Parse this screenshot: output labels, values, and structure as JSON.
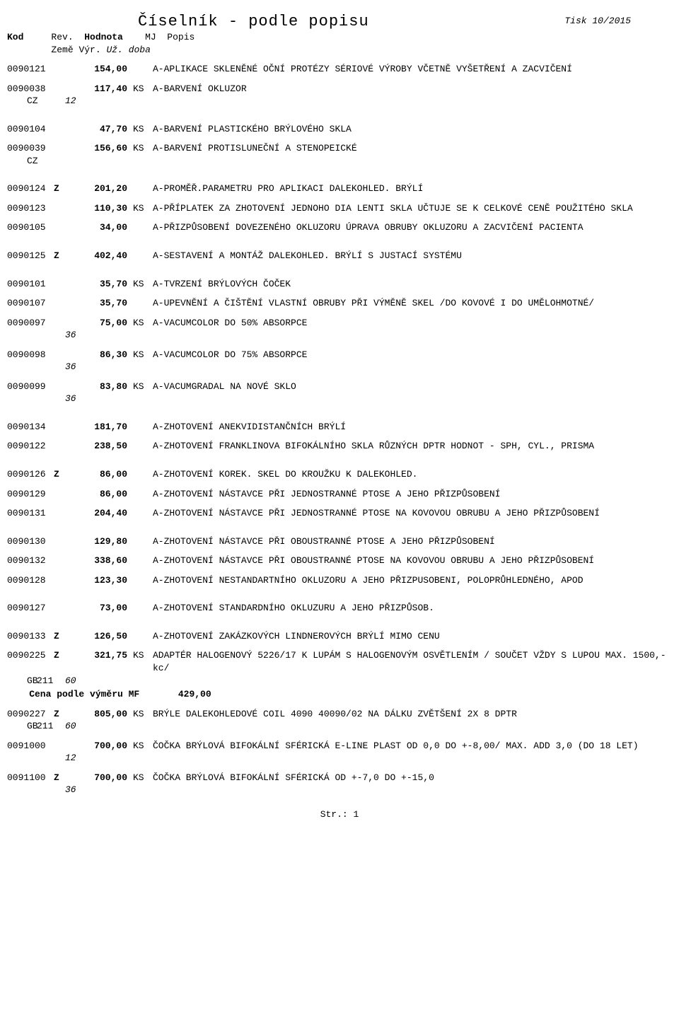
{
  "header": {
    "title": "Číselník - podle popisu",
    "print": "Tisk 10/2015",
    "cols": {
      "kod": "Kod",
      "rev": "Rev.",
      "hodnota": "Hodnota",
      "mj": "MJ",
      "popis": "Popis"
    },
    "subcols": {
      "zeme": "Země",
      "vyr": "Výr.",
      "uz": "Už. doba"
    }
  },
  "rows": [
    {
      "kod": "0090121",
      "rev": "",
      "hodnota": "154,00",
      "mj": "",
      "popis": "A-APLIKACE SKLENĚNÉ OČNÍ PROTÉZY SÉRIOVÉ VÝROBY VČETNĚ VYŠETŘENÍ A ZACVIČENÍ",
      "sub": null
    },
    {
      "kod": "0090038",
      "rev": "",
      "hodnota": "117,40",
      "mj": "KS",
      "popis": "A-BARVENÍ OKLUZOR",
      "sub": {
        "zeme": "CZ",
        "vyr": "",
        "uz": "12"
      }
    },
    {
      "kod": "0090104",
      "rev": "",
      "hodnota": "47,70",
      "mj": "KS",
      "popis": "A-BARVENÍ PLASTICKÉHO BRÝLOVÉHO SKLA",
      "sub": null,
      "gap": true
    },
    {
      "kod": "0090039",
      "rev": "",
      "hodnota": "156,60",
      "mj": "KS",
      "popis": "A-BARVENÍ PROTISLUNEČNÍ A STENOPEICKÉ",
      "sub": {
        "zeme": "CZ",
        "vyr": "",
        "uz": ""
      }
    },
    {
      "kod": "0090124",
      "rev": "Z",
      "hodnota": "201,20",
      "mj": "",
      "popis": "A-PROMĚŘ.PARAMETRU PRO APLIKACI DALEKOHLED. BRÝLÍ",
      "sub": null,
      "gap": true
    },
    {
      "kod": "0090123",
      "rev": "",
      "hodnota": "110,30",
      "mj": "KS",
      "popis": "A-PŘÍPLATEK ZA ZHOTOVENÍ JEDNOHO DIA LENTI SKLA UČTUJE SE K CELKOVÉ CENĚ POUŽITÉHO SKLA",
      "sub": null
    },
    {
      "kod": "0090105",
      "rev": "",
      "hodnota": "34,00",
      "mj": "",
      "popis": "A-PŘIZPŮSOBENÍ DOVEZENÉHO OKLUZORU ÚPRAVA OBRUBY OKLUZORU A ZACVIČENÍ PACIENTA",
      "sub": null
    },
    {
      "kod": "0090125",
      "rev": "Z",
      "hodnota": "402,40",
      "mj": "",
      "popis": "A-SESTAVENÍ A MONTÁŽ DALEKOHLED. BRÝLÍ S JUSTACÍ SYSTÉMU",
      "sub": null,
      "gap": true
    },
    {
      "kod": "0090101",
      "rev": "",
      "hodnota": "35,70",
      "mj": "KS",
      "popis": "A-TVRZENÍ BRÝLOVÝCH ČOČEK",
      "sub": null,
      "gap": true
    },
    {
      "kod": "0090107",
      "rev": "",
      "hodnota": "35,70",
      "mj": "",
      "popis": "A-UPEVNĚNÍ A ČIŠTĚNÍ VLASTNÍ OBRUBY PŘI VÝMĚNĚ SKEL /DO KOVOVÉ I DO UMĚLOHMOTNÉ/",
      "sub": null
    },
    {
      "kod": "0090097",
      "rev": "",
      "hodnota": "75,00",
      "mj": "KS",
      "popis": "A-VACUMCOLOR DO 50% ABSORPCE",
      "sub": {
        "zeme": "",
        "vyr": "",
        "uz": "36"
      }
    },
    {
      "kod": "0090098",
      "rev": "",
      "hodnota": "86,30",
      "mj": "KS",
      "popis": "A-VACUMCOLOR DO 75% ABSORPCE",
      "sub": {
        "zeme": "",
        "vyr": "",
        "uz": "36"
      }
    },
    {
      "kod": "0090099",
      "rev": "",
      "hodnota": "83,80",
      "mj": "KS",
      "popis": "A-VACUMGRADAL NA NOVÉ SKLO",
      "sub": {
        "zeme": "",
        "vyr": "",
        "uz": "36"
      }
    },
    {
      "kod": "0090134",
      "rev": "",
      "hodnota": "181,70",
      "mj": "",
      "popis": "A-ZHOTOVENÍ ANEKVIDISTANČNÍCH BRÝLÍ",
      "sub": null,
      "gap": true
    },
    {
      "kod": "0090122",
      "rev": "",
      "hodnota": "238,50",
      "mj": "",
      "popis": "A-ZHOTOVENÍ FRANKLINOVA BIFOKÁLNÍHO SKLA RŮZNÝCH DPTR HODNOT - SPH, CYL., PRISMA",
      "sub": null
    },
    {
      "kod": "0090126",
      "rev": "Z",
      "hodnota": "86,00",
      "mj": "",
      "popis": "A-ZHOTOVENÍ KOREK. SKEL DO KROUŽKU K DALEKOHLED.",
      "sub": null,
      "gap": true
    },
    {
      "kod": "0090129",
      "rev": "",
      "hodnota": "86,00",
      "mj": "",
      "popis": "A-ZHOTOVENÍ NÁSTAVCE PŘI JEDNOSTRANNÉ PTOSE A JEHO PŘIZPŮSOBENÍ",
      "sub": null
    },
    {
      "kod": "0090131",
      "rev": "",
      "hodnota": "204,40",
      "mj": "",
      "popis": "A-ZHOTOVENÍ NÁSTAVCE PŘI JEDNOSTRANNÉ PTOSE NA KOVOVOU OBRUBU A JEHO PŘIZPŮSOBENÍ",
      "sub": null
    },
    {
      "kod": "0090130",
      "rev": "",
      "hodnota": "129,80",
      "mj": "",
      "popis": "A-ZHOTOVENÍ NÁSTAVCE PŘI OBOUSTRANNÉ PTOSE A JEHO PŘIZPŮSOBENÍ",
      "sub": null,
      "gap": true
    },
    {
      "kod": "0090132",
      "rev": "",
      "hodnota": "338,60",
      "mj": "",
      "popis": "A-ZHOTOVENÍ NÁSTAVCE PŘI OBOUSTRANNÉ PTOSE NA KOVOVOU OBRUBU A JEHO PŘIZPŮSOBENÍ",
      "sub": null
    },
    {
      "kod": "0090128",
      "rev": "",
      "hodnota": "123,30",
      "mj": "",
      "popis": "A-ZHOTOVENÍ NESTANDARTNÍHO OKLUZORU A JEHO PŘIZPUSOBENI, POLOPRŮHLEDNÉHO, APOD",
      "sub": null
    },
    {
      "kod": "0090127",
      "rev": "",
      "hodnota": "73,00",
      "mj": "",
      "popis": "A-ZHOTOVENÍ STANDARDNÍHO OKLUZURU A JEHO PŘIZPŮSOB.",
      "sub": null,
      "gap": true
    },
    {
      "kod": "0090133",
      "rev": "Z",
      "hodnota": "126,50",
      "mj": "",
      "popis": "A-ZHOTOVENÍ ZAKÁZKOVÝCH LINDNEROVÝCH BRÝLÍ MIMO CENU",
      "sub": null,
      "gap": true
    },
    {
      "kod": "0090225",
      "rev": "Z",
      "hodnota": "321,75",
      "mj": "KS",
      "popis": "ADAPTÉR  HALOGENOVÝ  5226/17 K LUPÁM S HALOGENOVÝM OSVĚTLENÍM / SOUČET VŽDY S LUPOU MAX. 1500,-kc/",
      "sub": {
        "zeme": "GB",
        "vyr": "211",
        "uz": "60"
      },
      "cena": "429,00"
    },
    {
      "kod": "0090227",
      "rev": "Z",
      "hodnota": "805,00",
      "mj": "KS",
      "popis": "BRÝLE DALEKOHLEDOVÉ COIL 4090  40090/02 NA DÁLKU ZVĚTŠENÍ 2X 8 DPTR",
      "sub": {
        "zeme": "GB",
        "vyr": "211",
        "uz": "60"
      }
    },
    {
      "kod": "0091000",
      "rev": "",
      "hodnota": "700,00",
      "mj": "KS",
      "popis": "ČOČKA BRÝLOVÁ BIFOKÁLNÍ SFÉRICKÁ E-LINE   PLAST OD 0,0 DO +-8,00/  MAX. ADD 3,0 (DO 18 LET)",
      "sub": {
        "zeme": "",
        "vyr": "",
        "uz": "12"
      }
    },
    {
      "kod": "0091100",
      "rev": "Z",
      "hodnota": "700,00",
      "mj": "KS",
      "popis": "ČOČKA BRÝLOVÁ BIFOKÁLNÍ SFÉRICKÁ OD +-7,0 DO +-15,0",
      "sub": {
        "zeme": "",
        "vyr": "",
        "uz": "36"
      }
    }
  ],
  "cena_label": "Cena podle výměru MF",
  "footer": "Str.: 1"
}
